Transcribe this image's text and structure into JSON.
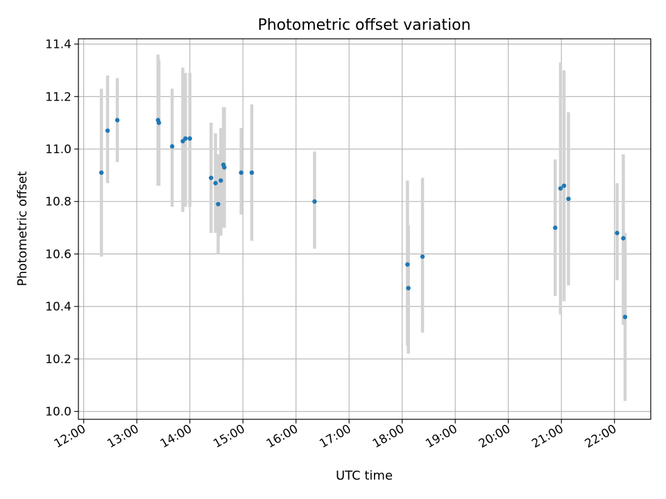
{
  "chart_data": {
    "type": "scatter",
    "title": "Photometric offset variation",
    "xlabel": "UTC time",
    "ylabel": "Photometric offset",
    "xlim": [
      "11:54",
      "22:41"
    ],
    "ylim": [
      9.97,
      11.42
    ],
    "grid": true,
    "legend": "none",
    "x_ticks": [
      "12:00",
      "13:00",
      "14:00",
      "15:00",
      "16:00",
      "17:00",
      "18:00",
      "19:00",
      "20:00",
      "21:00",
      "22:00"
    ],
    "y_ticks": [
      "10.0",
      "10.2",
      "10.4",
      "10.6",
      "10.8",
      "11.0",
      "11.2",
      "11.4"
    ],
    "colors": {
      "marker": "#1f77b4",
      "error_bar": "#d3d3d3",
      "grid": "#b0b0b0"
    },
    "series": [
      {
        "points": [
          {
            "x": "12:20",
            "y": 10.91,
            "lo": 10.59,
            "hi": 11.23
          },
          {
            "x": "12:27",
            "y": 11.07,
            "lo": 10.87,
            "hi": 11.28
          },
          {
            "x": "12:38",
            "y": 11.11,
            "lo": 10.95,
            "hi": 11.27
          },
          {
            "x": "13:24",
            "y": 11.11,
            "lo": 10.86,
            "hi": 11.36
          },
          {
            "x": "13:25",
            "y": 11.1,
            "lo": 10.86,
            "hi": 11.34
          },
          {
            "x": "13:40",
            "y": 11.01,
            "lo": 10.78,
            "hi": 11.23
          },
          {
            "x": "13:52",
            "y": 11.03,
            "lo": 10.76,
            "hi": 11.31
          },
          {
            "x": "13:55",
            "y": 11.04,
            "lo": 10.78,
            "hi": 11.29
          },
          {
            "x": "14:00",
            "y": 11.04,
            "lo": 10.78,
            "hi": 11.29
          },
          {
            "x": "14:24",
            "y": 10.89,
            "lo": 10.68,
            "hi": 11.1
          },
          {
            "x": "14:29",
            "y": 10.87,
            "lo": 10.68,
            "hi": 11.06
          },
          {
            "x": "14:32",
            "y": 10.79,
            "lo": 10.6,
            "hi": 10.98
          },
          {
            "x": "14:35",
            "y": 10.88,
            "lo": 10.67,
            "hi": 11.08
          },
          {
            "x": "14:38",
            "y": 10.94,
            "lo": 10.7,
            "hi": 11.16
          },
          {
            "x": "14:39",
            "y": 10.93,
            "lo": 10.7,
            "hi": 11.16
          },
          {
            "x": "14:58",
            "y": 10.91,
            "lo": 10.75,
            "hi": 11.08
          },
          {
            "x": "15:10",
            "y": 10.91,
            "lo": 10.65,
            "hi": 11.17
          },
          {
            "x": "16:21",
            "y": 10.8,
            "lo": 10.62,
            "hi": 10.99
          },
          {
            "x": "18:06",
            "y": 10.56,
            "lo": 10.25,
            "hi": 10.88
          },
          {
            "x": "18:07",
            "y": 10.47,
            "lo": 10.22,
            "hi": 10.71
          },
          {
            "x": "18:23",
            "y": 10.59,
            "lo": 10.3,
            "hi": 10.89
          },
          {
            "x": "20:53",
            "y": 10.7,
            "lo": 10.44,
            "hi": 10.96
          },
          {
            "x": "20:59",
            "y": 10.85,
            "lo": 10.37,
            "hi": 11.33
          },
          {
            "x": "21:03",
            "y": 10.86,
            "lo": 10.42,
            "hi": 11.3
          },
          {
            "x": "21:08",
            "y": 10.81,
            "lo": 10.48,
            "hi": 11.14
          },
          {
            "x": "22:03",
            "y": 10.68,
            "lo": 10.5,
            "hi": 10.87
          },
          {
            "x": "22:10",
            "y": 10.66,
            "lo": 10.33,
            "hi": 10.98
          },
          {
            "x": "22:12",
            "y": 10.36,
            "lo": 10.04,
            "hi": 10.68
          }
        ]
      }
    ]
  }
}
